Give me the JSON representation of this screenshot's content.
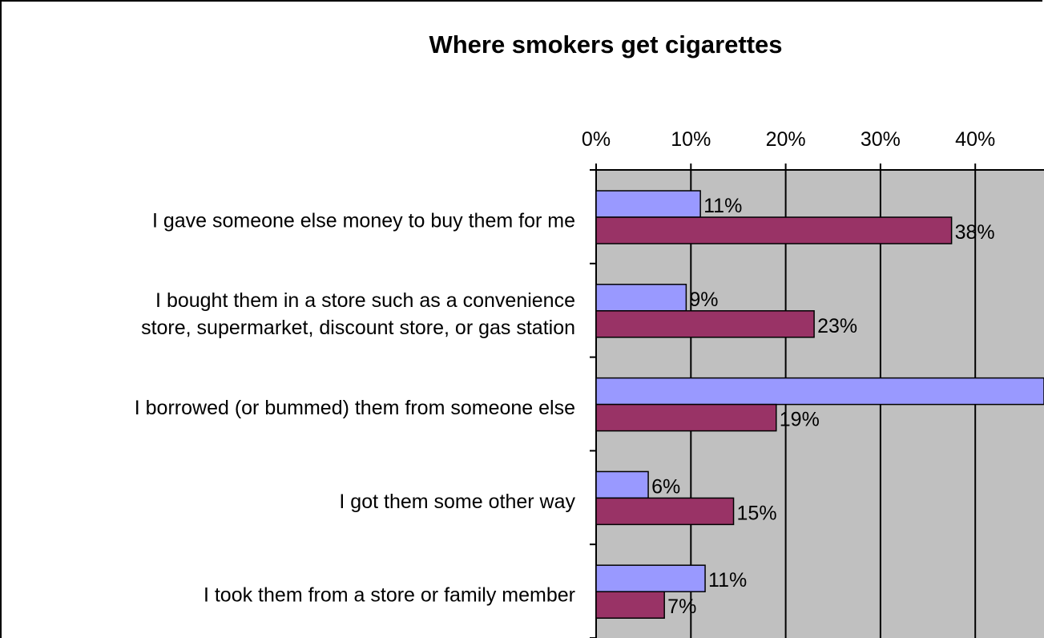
{
  "chart_data": {
    "type": "bar",
    "orientation": "horizontal",
    "title": "Where smokers get cigarettes",
    "xlabel": "",
    "ylabel": "",
    "xlim": [
      0,
      0.47
    ],
    "x_ticks": [
      "0%",
      "10%",
      "20%",
      "30%",
      "40%"
    ],
    "grid": "vertical",
    "legend": "none visible",
    "categories": [
      [
        "I gave someone else money to buy them for me"
      ],
      [
        "I bought them in a store such as a convenience",
        "store, supermarket, discount store, or gas station"
      ],
      [
        "I borrowed (or bummed) them from someone else"
      ],
      [
        "I got them some other way"
      ],
      [
        "I took them from a store or family member"
      ]
    ],
    "series": [
      {
        "color": "#9999ff",
        "values": [
          0.11,
          0.095,
          0.48,
          0.055,
          0.115
        ],
        "labels": [
          "11%",
          "9%",
          "",
          "6%",
          "11%"
        ]
      },
      {
        "color": "#993366",
        "values": [
          0.375,
          0.23,
          0.19,
          0.145,
          0.072
        ],
        "labels": [
          "38%",
          "23%",
          "19%",
          "15%",
          "7%"
        ]
      }
    ],
    "plot_background": "#c0c0c0"
  }
}
